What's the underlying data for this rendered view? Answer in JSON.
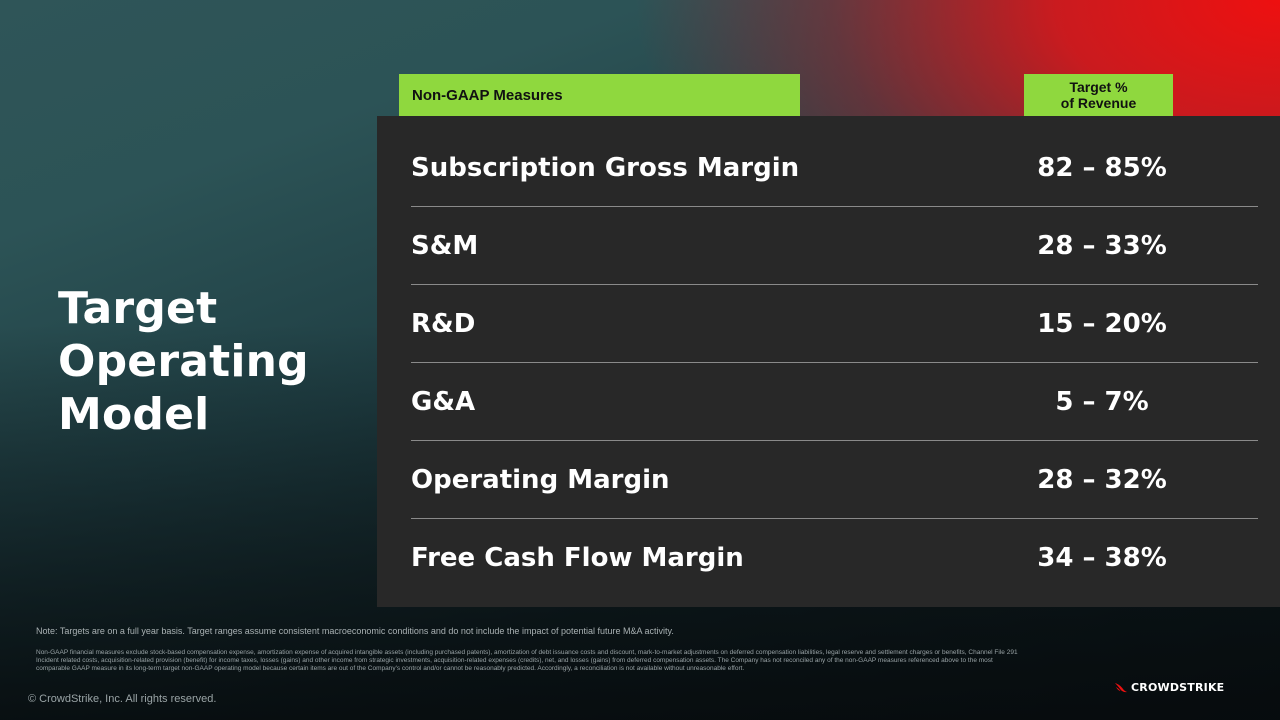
{
  "title": {
    "lines": [
      "Target",
      "Operating",
      "Model"
    ]
  },
  "table": {
    "header_left": "Non-GAAP Measures",
    "header_right": [
      "Target %",
      "of Revenue"
    ],
    "rows": [
      {
        "label": "Subscription Gross Margin",
        "value": "82 – 85%"
      },
      {
        "label": "S&M",
        "value": "28 – 33%"
      },
      {
        "label": "R&D",
        "value": "15 – 20%"
      },
      {
        "label": "G&A",
        "value": "5 – 7%"
      },
      {
        "label": "Operating Margin",
        "value": "28 – 32%"
      },
      {
        "label": "Free Cash Flow Margin",
        "value": "34 – 38%"
      }
    ]
  },
  "footer": {
    "note": "Note: Targets are on a full year basis. Target ranges assume consistent macroeconomic conditions and do not include the impact of potential future M&A activity.",
    "disclaimer": "Non-GAAP financial measures exclude stock-based compensation expense, amortization expense of acquired intangible assets (including purchased patents), amortization of debt issuance costs and discount, mark-to-market adjustments on deferred compensation liabilities, legal reserve and settlement charges or benefits, Channel File 291 Incident related costs, acquisition-related provision (benefit) for income taxes, losses (gains) and other income from strategic investments, acquisition-related expenses (credits), net, and losses (gains) from deferred compensation assets. The Company has not reconciled any of the non-GAAP measures referenced above to the most comparable GAAP measure in its long-term target non-GAAP operating model because certain items are out of the Company's control and/or cannot be reasonably predicted. Accordingly, a reconciliation is not available without unreasonable effort.",
    "copyright": "© CrowdStrike, Inc. All rights reserved.",
    "logo_text": "CROWDSTRIKE",
    "logo_icon": "falcon-icon"
  },
  "colors": {
    "accent_green": "#8fd83e",
    "brand_red": "#ee1010",
    "panel": "#282828"
  }
}
